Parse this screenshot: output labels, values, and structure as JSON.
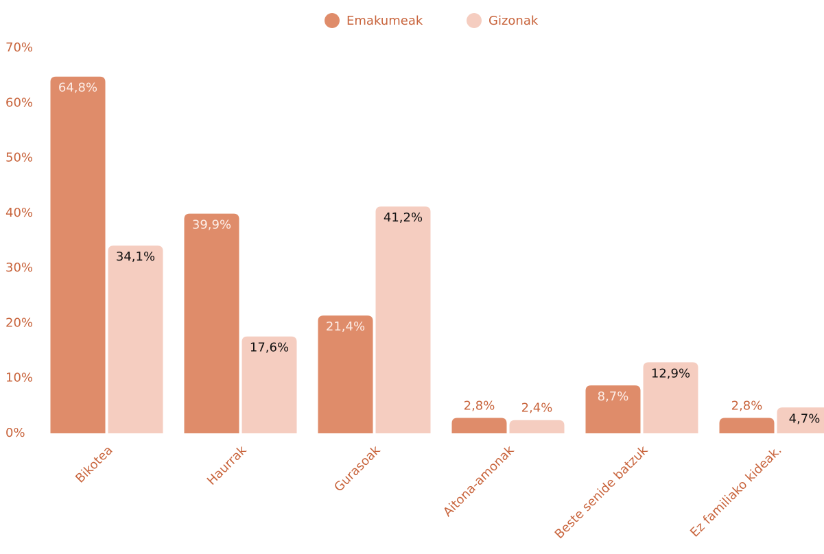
{
  "chart_data": {
    "type": "bar",
    "categories": [
      "Bikotea",
      "Haurrak",
      "Gurasoak",
      "Aitona-amonak",
      "Beste senide batzuk",
      "Ez familiako kideak."
    ],
    "series": [
      {
        "name": "Emakumeak",
        "color": "#df8c6a",
        "values": [
          64.8,
          39.9,
          21.4,
          2.8,
          8.7,
          2.8
        ],
        "value_labels": [
          "64,8%",
          "39,9%",
          "21,4%",
          "2,8%",
          "8,7%",
          "2,8%"
        ]
      },
      {
        "name": "Gizonak",
        "color": "#f5cdc0",
        "values": [
          34.1,
          17.6,
          41.2,
          2.4,
          12.9,
          4.7
        ],
        "value_labels": [
          "34,1%",
          "17,6%",
          "41,2%",
          "2,4%",
          "12,9%",
          "4,7%"
        ]
      }
    ],
    "ylim": [
      0,
      70
    ],
    "yticks": [
      {
        "value": 0,
        "label": "0%"
      },
      {
        "value": 10,
        "label": "10%"
      },
      {
        "value": 20,
        "label": "20%"
      },
      {
        "value": 30,
        "label": "30%"
      },
      {
        "value": 40,
        "label": "40%"
      },
      {
        "value": 50,
        "label": "50%"
      },
      {
        "value": 60,
        "label": "60%"
      },
      {
        "value": 70,
        "label": "70%"
      }
    ],
    "legend": "top",
    "grid": false
  }
}
